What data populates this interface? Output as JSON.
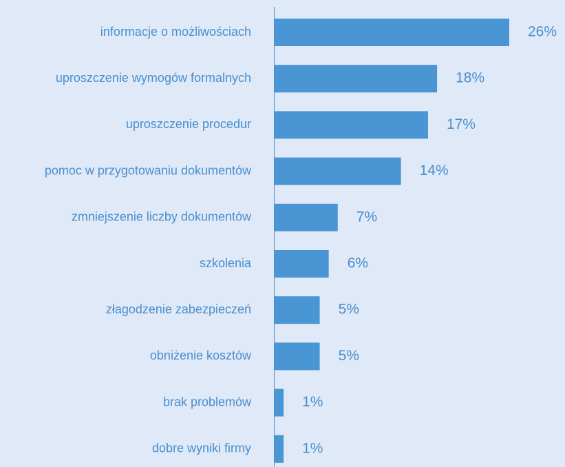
{
  "chart_data": {
    "type": "bar",
    "orientation": "horizontal",
    "categories": [
      "informacje o możliwościach",
      "uproszczenie wymogów formalnych",
      "uproszczenie procedur",
      "pomoc w przygotowaniu dokumentów",
      "zmniejszenie liczby dokumentów",
      "szkolenia",
      "złagodzenie zabezpieczeń",
      "obniżenie kosztów",
      "brak problemów",
      "dobre wyniki firmy"
    ],
    "values": [
      26,
      18,
      17,
      14,
      7,
      6,
      5,
      5,
      1,
      1
    ],
    "value_labels": [
      "26%",
      "18%",
      "17%",
      "14%",
      "7%",
      "6%",
      "5%",
      "5%",
      "1%",
      "1%"
    ],
    "color": "#4a96d4"
  }
}
